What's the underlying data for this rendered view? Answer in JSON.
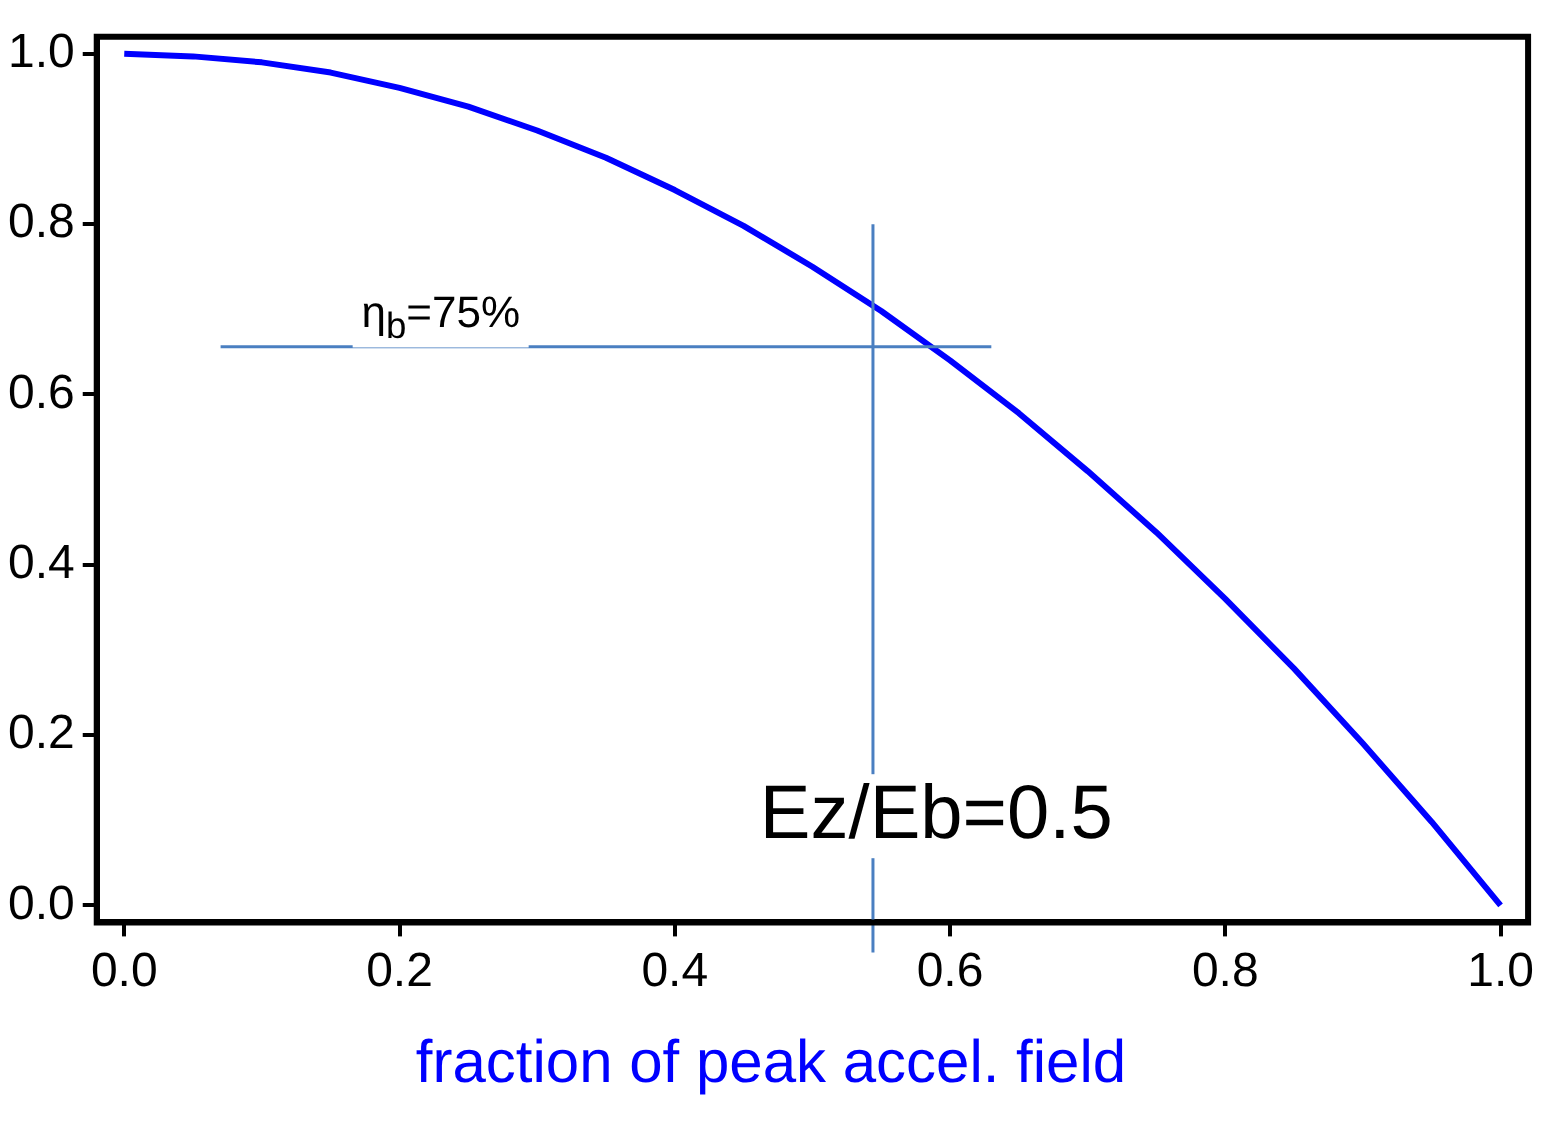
{
  "chart_data": {
    "type": "line",
    "xlabel": "fraction of peak accel. field",
    "x": [
      0,
      0.05,
      0.1,
      0.15,
      0.2,
      0.25,
      0.3,
      0.35,
      0.4,
      0.45,
      0.5,
      0.55,
      0.6,
      0.65,
      0.7,
      0.75,
      0.8,
      0.85,
      0.9,
      0.95,
      1.0
    ],
    "series": [
      {
        "color": "#0000ff",
        "values": [
          1.0,
          0.997,
          0.99,
          0.978,
          0.96,
          0.938,
          0.91,
          0.878,
          0.84,
          0.798,
          0.75,
          0.698,
          0.64,
          0.578,
          0.51,
          0.438,
          0.36,
          0.278,
          0.19,
          0.098,
          0.0
        ]
      }
    ],
    "xlim": [
      -0.02,
      1.02
    ],
    "ylim": [
      -0.02,
      1.02
    ],
    "xticks": [
      {
        "value": 0,
        "label": "0.0"
      },
      0.2,
      0.4,
      0.6,
      0.8,
      {
        "value": 1,
        "label": "1.0"
      }
    ],
    "yticks": [
      {
        "value": 0,
        "label": "0.0"
      },
      0.2,
      0.4,
      0.6,
      0.8,
      {
        "value": 1,
        "label": "1.0"
      }
    ],
    "ref_lines": [
      {
        "axis": "x",
        "value": 0.544,
        "label": "Ez/Eb=0.5",
        "color": "#4a7fc1"
      },
      {
        "axis": "y",
        "value": 0.656,
        "color": "#4a7fc1"
      }
    ],
    "annotations": [
      "η$_{b}$=75%"
    ],
    "marker": "none",
    "line_style": "solid",
    "grid": false,
    "legend": false
  }
}
